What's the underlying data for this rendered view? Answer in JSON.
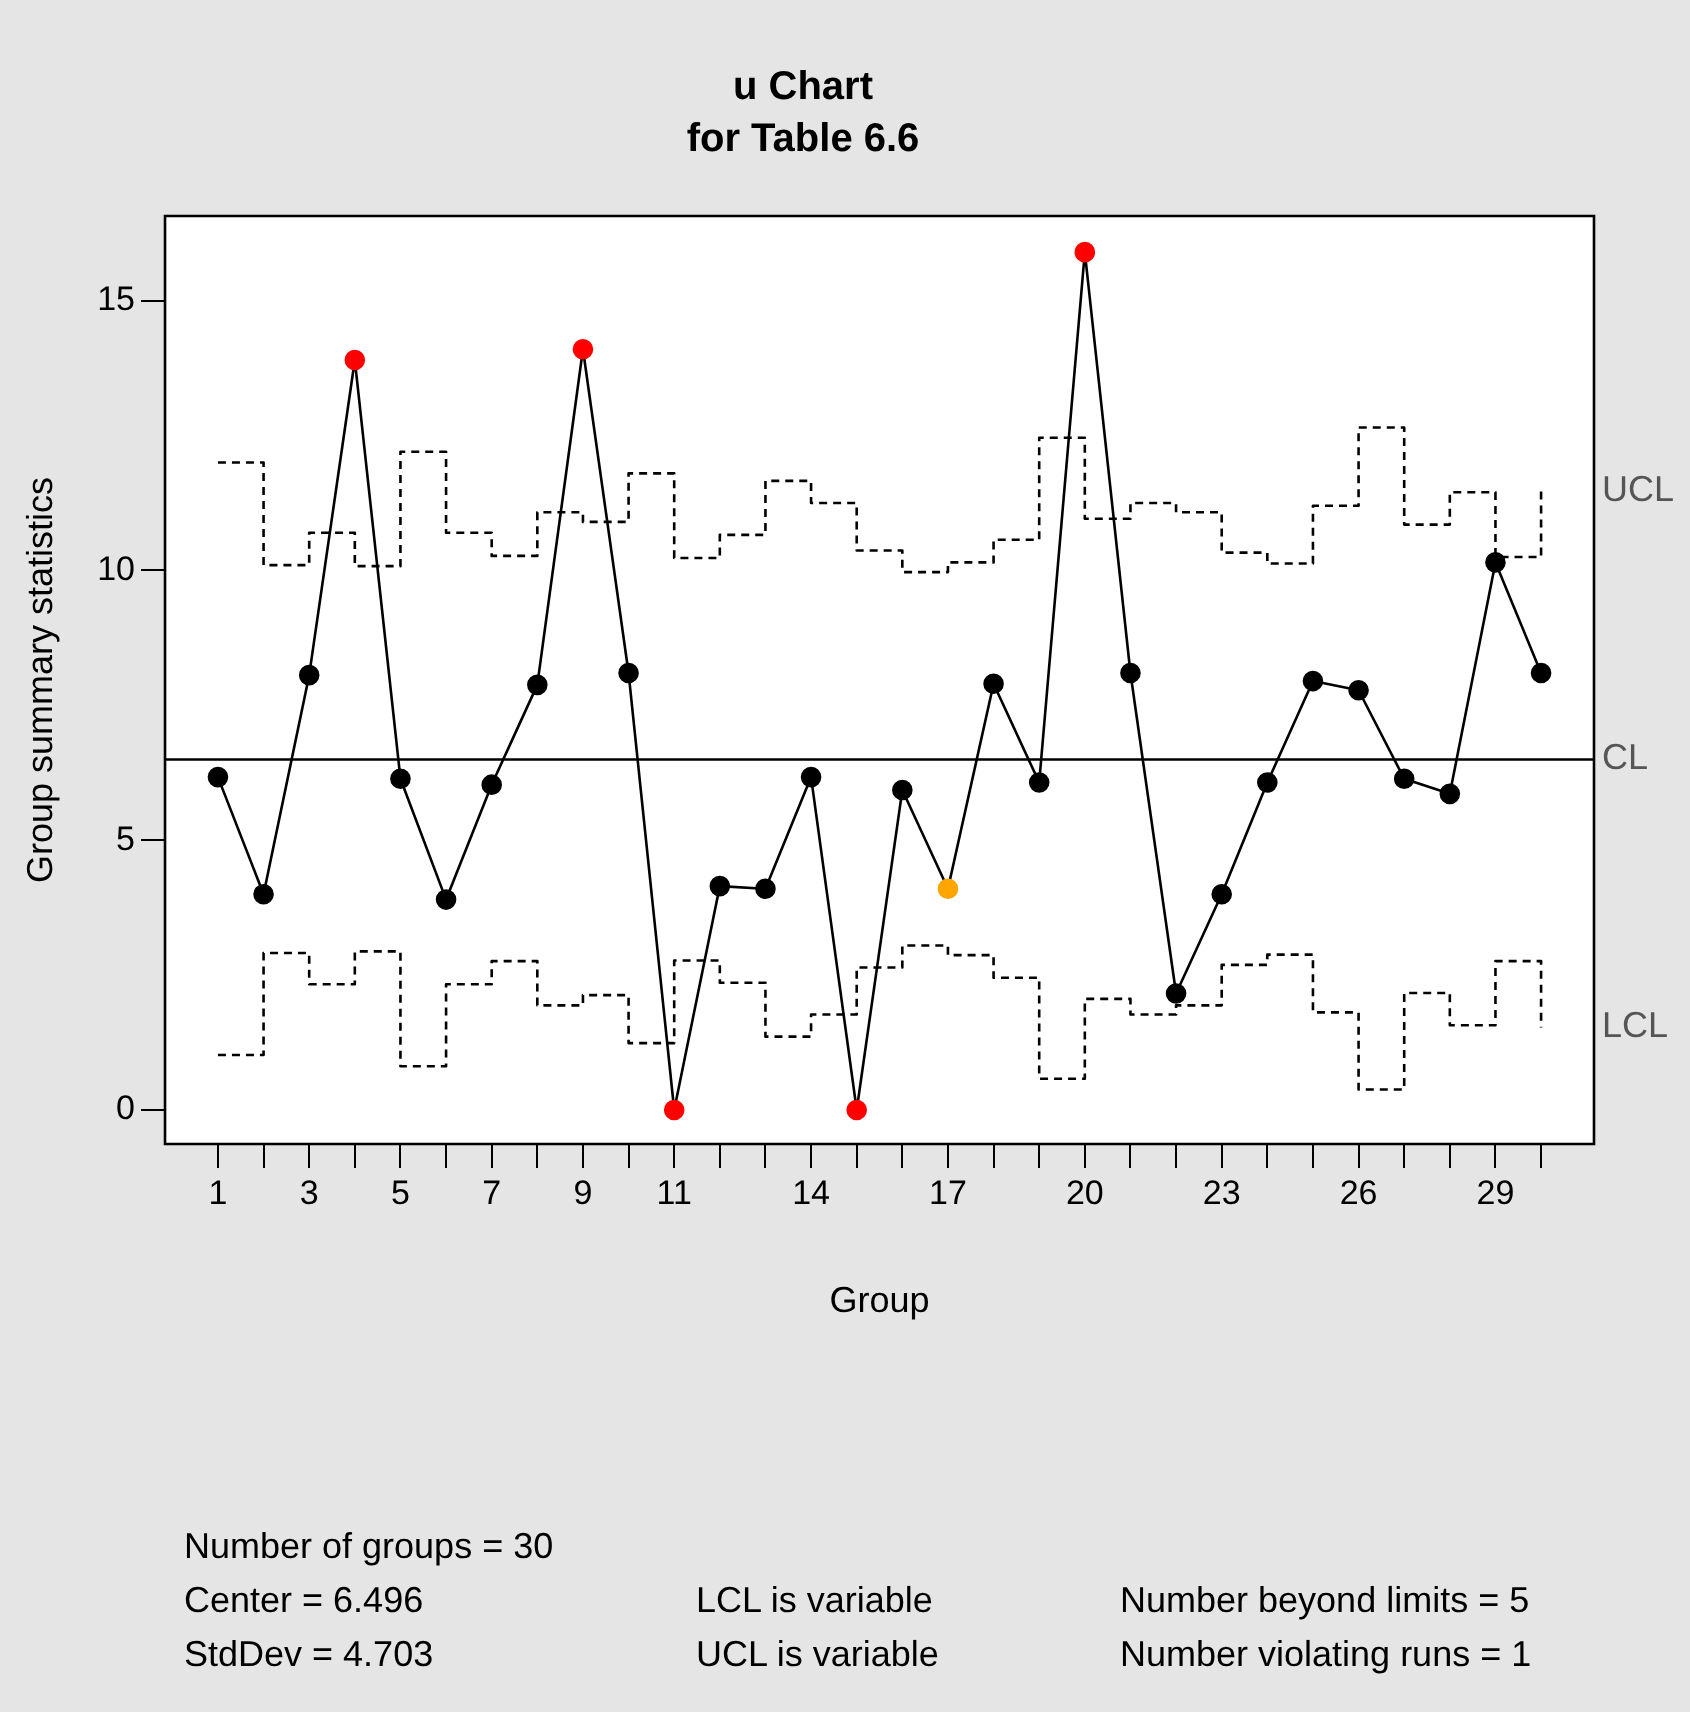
{
  "chart_data": {
    "type": "line",
    "title": "u Chart",
    "subtitle": "for Table 6.6",
    "xlabel": "Group",
    "ylabel": "Group summary statistics",
    "x": [
      1,
      2,
      3,
      4,
      5,
      6,
      7,
      8,
      9,
      10,
      11,
      12,
      13,
      14,
      15,
      16,
      17,
      18,
      19,
      20,
      21,
      22,
      23,
      24,
      25,
      26,
      27,
      28,
      29,
      30
    ],
    "series": [
      {
        "color": "#000000",
        "marker": "circle",
        "colors": [
          "#000000",
          "#000000",
          "#000000",
          "#ff0000",
          "#000000",
          "#000000",
          "#000000",
          "#000000",
          "#ff0000",
          "#000000",
          "#ff0000",
          "#000000",
          "#000000",
          "#000000",
          "#ff0000",
          "#000000",
          "#ffa500",
          "#000000",
          "#000000",
          "#ff0000",
          "#000000",
          "#000000",
          "#000000",
          "#000000",
          "#000000",
          "#000000",
          "#000000",
          "#000000",
          "#000000",
          "#000000"
        ],
        "values": [
          6.17,
          4.0,
          8.06,
          13.9,
          6.14,
          3.9,
          6.03,
          7.88,
          14.1,
          8.1,
          0,
          4.15,
          4.1,
          6.17,
          0,
          5.93,
          4.1,
          7.9,
          6.07,
          15.9,
          8.1,
          2.16,
          4.0,
          6.07,
          7.95,
          7.78,
          6.14,
          5.86,
          10.15,
          8.1
        ]
      },
      {
        "type": "step",
        "name": "UCL",
        "color": "#000000",
        "marker": "none",
        "line_style": "dashed",
        "values": [
          12.0,
          10.1,
          10.7,
          10.08,
          12.2,
          10.7,
          10.27,
          11.08,
          10.9,
          11.8,
          10.23,
          10.66,
          11.66,
          11.25,
          10.37,
          9.97,
          10.15,
          10.57,
          12.46,
          10.96,
          11.25,
          11.08,
          10.33,
          10.13,
          11.2,
          12.65,
          10.85,
          11.45,
          10.25,
          11.47
        ]
      },
      {
        "type": "step",
        "name": "LCL",
        "color": "#000000",
        "marker": "none",
        "line_style": "dashed",
        "values": [
          1.02,
          2.91,
          2.33,
          2.94,
          0.81,
          2.33,
          2.76,
          1.94,
          2.13,
          1.24,
          2.77,
          2.36,
          1.36,
          1.77,
          2.64,
          3.05,
          2.87,
          2.45,
          0.58,
          2.06,
          1.77,
          1.94,
          2.69,
          2.88,
          1.81,
          0.38,
          2.17,
          1.57,
          2.76,
          1.53
        ]
      }
    ],
    "ref_lines": [
      {
        "axis": "y",
        "value": 6.496,
        "label": "CL",
        "color": "#000000"
      }
    ],
    "xlim": [
      -0.16,
      31.16
    ],
    "xticks": [
      1,
      {
        "value": 2,
        "label": null
      },
      3,
      {
        "value": 4,
        "label": null
      },
      5,
      {
        "value": 6,
        "label": null
      },
      7,
      {
        "value": 8,
        "label": null
      },
      9,
      {
        "value": 10,
        "label": null
      },
      11,
      {
        "value": 12,
        "label": null
      },
      {
        "value": 13,
        "label": null
      },
      14,
      {
        "value": 15,
        "label": null
      },
      {
        "value": 16,
        "label": null
      },
      17,
      {
        "value": 18,
        "label": null
      },
      {
        "value": 19,
        "label": null
      },
      20,
      {
        "value": 21,
        "label": null
      },
      {
        "value": 22,
        "label": null
      },
      23,
      {
        "value": 24,
        "label": null
      },
      {
        "value": 25,
        "label": null
      },
      26,
      {
        "value": 27,
        "label": null
      },
      {
        "value": 28,
        "label": null
      },
      29,
      {
        "value": 30,
        "label": null
      }
    ],
    "ylim": [
      -0.63,
      16.57
    ],
    "yticks": [
      0,
      5,
      10,
      15
    ],
    "grid": false,
    "legend": false,
    "annotations": [
      "Number of groups = 30",
      "Center = 6.496",
      "StdDev = 4.703",
      "LCL is variable",
      "UCL is variable",
      "Number beyond limits = 5",
      "Number violating runs = 1"
    ]
  }
}
